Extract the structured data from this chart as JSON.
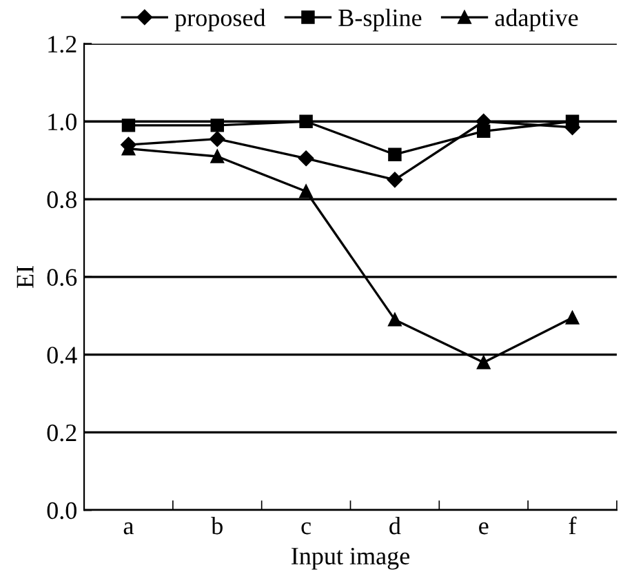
{
  "chart_data": {
    "type": "line",
    "xlabel": "Input image",
    "ylabel": "EI",
    "categories": [
      "a",
      "b",
      "c",
      "d",
      "e",
      "f"
    ],
    "series": [
      {
        "name": "proposed",
        "color": "#000000",
        "marker": "diamond",
        "values": [
          0.94,
          0.955,
          0.905,
          0.85,
          1.0,
          0.985
        ]
      },
      {
        "name": "B-spline",
        "color": "#000000",
        "marker": "square",
        "values": [
          0.99,
          0.99,
          1.0,
          0.915,
          0.975,
          1.0
        ]
      },
      {
        "name": "adaptive",
        "color": "#000000",
        "marker": "triangle",
        "values": [
          0.93,
          0.91,
          0.82,
          0.49,
          0.38,
          0.495
        ]
      }
    ],
    "ylim": [
      0,
      1.2
    ],
    "yticks": [
      {
        "value": 0,
        "label": "0.0"
      },
      0.2,
      0.4,
      0.6,
      0.8,
      {
        "value": 1,
        "label": "1.0"
      },
      1.2
    ],
    "grid": "y",
    "legend": "top",
    "line_style": "solid"
  }
}
